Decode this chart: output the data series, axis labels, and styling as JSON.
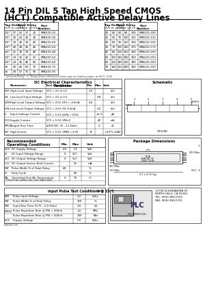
{
  "title_line1": "14 Pin DIL 5 Tap High Speed CMOS",
  "title_line2": "(HCT) Compatible Active Delay Lines",
  "bg_color": "#ffffff",
  "table1_data": [
    [
      "1/2*",
      "17",
      "22",
      "27",
      "32",
      "EPA220-32"
    ],
    [
      "1/2*",
      "20",
      "24",
      "30",
      "36",
      "EPA220-36"
    ],
    [
      "1/2*",
      "19",
      "26",
      "33",
      "40",
      "EPA220-40"
    ],
    [
      "1/2*",
      "20",
      "28",
      "36",
      "44",
      "EPA220-44"
    ],
    [
      "1/2*",
      "21",
      "30",
      "39",
      "48",
      "EPA220-48"
    ],
    [
      "1/2*",
      "23",
      "32",
      "42",
      "52",
      "EPA220-52"
    ],
    [
      "1/2*",
      "24",
      "36",
      "48",
      "60",
      "EPA220-60"
    ],
    [
      "1S",
      "20",
      "45",
      "60",
      "75",
      "EPA220-75"
    ],
    [
      "1S",
      "30",
      "57",
      "75",
      "95",
      "EPA220-95"
    ]
  ],
  "table2_data": [
    [
      "20",
      "40",
      "60",
      "80",
      "100",
      "EPA220-100"
    ],
    [
      "25",
      "50",
      "75",
      "100",
      "125",
      "EPA220-125"
    ],
    [
      "30",
      "60",
      "90",
      "120",
      "150",
      "EPA220-150"
    ],
    [
      "35",
      "70",
      "105",
      "140",
      "175",
      "EPA220-175"
    ],
    [
      "40",
      "80",
      "130",
      "160",
      "200",
      "EPA220-200"
    ],
    [
      "50",
      "100",
      "150",
      "200",
      "250",
      "EPA220-250"
    ],
    [
      "60",
      "120",
      "180",
      "240",
      "300",
      "EPA220-300"
    ],
    [
      "70",
      "140",
      "210",
      "280",
      "350",
      "EPA220-350"
    ]
  ],
  "footnote": "* Inherent Delay   +  Delay times referenced from input to leading edges, at 25°C, 5.0V",
  "dc_data": [
    [
      "VIH",
      "High Level Input Voltage",
      "VCC = 4.5 to 5.5",
      "2.0",
      "",
      "Volt"
    ],
    [
      "VIL",
      "Low Level Input Voltage",
      "VCC = 4.5 to 5.5",
      "",
      "0.8",
      "Volt"
    ],
    [
      "VOH",
      "High Level Output Voltage",
      "VCC = 4.5V, IOH = -4.0mA",
      "4.6",
      "",
      "Volt"
    ],
    [
      "VOL",
      "Low Level Output Voltage",
      "VCC = 4.5V, IOL 4.0mA",
      "",
      "0.2",
      "Volt"
    ],
    [
      "IL",
      "Input Leakage Current",
      "VCC = 5.5V @VIN = 0/VIL",
      "",
      "±1.0",
      "μA"
    ],
    [
      "ICCL",
      "Supply Current",
      "VCC = 5.5V, VIN=0",
      "",
      "40",
      "mA"
    ],
    [
      "TPCO",
      "Output Rise Time",
      "≤300 NS (.75 - 2.4 Volts)",
      "",
      "4",
      "nS"
    ],
    [
      "NO",
      "High Fanout",
      "VCC = 5.5V, VMIN = 4.0V",
      "10",
      "",
      "LS/TTL LOAD"
    ]
  ],
  "rec_op_data": [
    [
      "VCC",
      "DC Supply Voltage",
      "4.5",
      "5.5",
      "Volt"
    ],
    [
      "VI",
      "DC Input Voltage Range",
      "0",
      "VCC",
      "Volt"
    ],
    [
      "VCI",
      "DC Output Voltage Range",
      "0",
      "VCC",
      "Volt"
    ],
    [
      "I CI",
      "DC Output Source-Sink Current",
      "",
      "25",
      "mA"
    ],
    [
      "PW",
      "Pulse Width % of Total Delay",
      "40",
      "",
      "%"
    ],
    [
      "D",
      "Duty Cycle",
      "",
      "40",
      "%"
    ],
    [
      "TA",
      "Operating Free Air Temperature",
      "0",
      "70",
      "°C"
    ]
  ],
  "rec_footnote": "*These two values are inter-dependent",
  "input_pulse_data": [
    [
      "EIN",
      "Pulse Input Voltage",
      "3.2",
      "Volts"
    ],
    [
      "PW",
      "Pulse Width % of Total Delay",
      "150",
      "%"
    ],
    [
      "TIN",
      "Input Rise Time (0.75 - 2.4 Volts)",
      "2.0",
      "nS"
    ],
    [
      "FREQ",
      "Pulse Repetition Rate @ PW < 500nS",
      "1.0",
      "MHz"
    ],
    [
      "",
      "Pulse Repetition Rate @ PW > 500nS",
      "100",
      "KHz"
    ],
    [
      "VCC",
      "Supply Voltage",
      "5.0",
      "Volts"
    ]
  ],
  "company_name": "PLC ELECTRONICS INC.",
  "company_addr": "15799 SCHOENBORN ST.\nNORTH HILLS, CA 91343\nTEL: (818)-892-0761\nFAX: (818) 894-5761",
  "part_number": "EPA220-175"
}
